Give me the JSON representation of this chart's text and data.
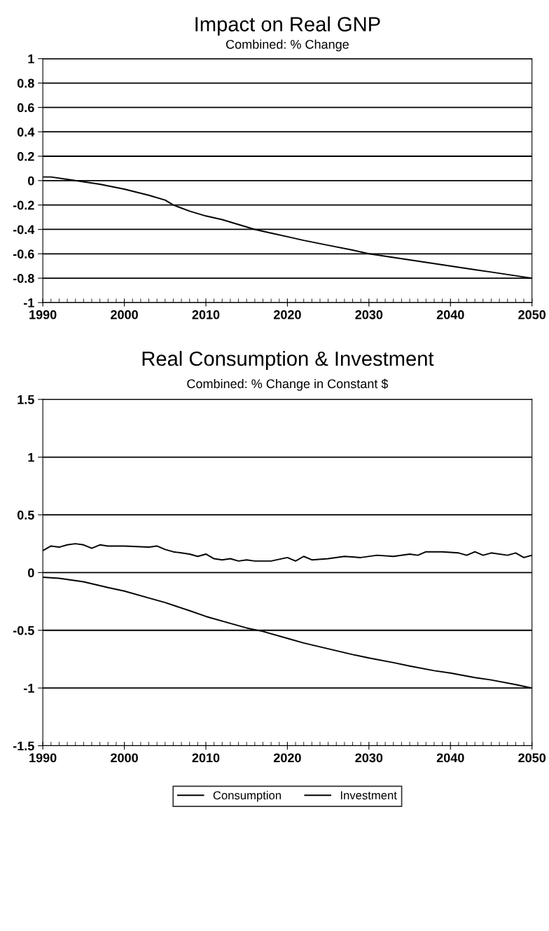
{
  "chart_data": [
    {
      "type": "line",
      "title": "Impact on Real GNP",
      "subtitle": "Combined: % Change",
      "xlim": [
        1990,
        2050
      ],
      "xticks": [
        1990,
        2000,
        2010,
        2020,
        2030,
        2040,
        2050
      ],
      "ylim": [
        -1,
        1
      ],
      "yticks": [
        -1,
        -0.8,
        -0.6,
        -0.4,
        -0.2,
        0,
        0.2,
        0.4,
        0.6,
        0.8,
        1
      ],
      "grid": "y",
      "legend": false,
      "series": [
        {
          "color": "#000000",
          "x": [
            1990,
            1991,
            1993,
            1995,
            1997,
            2000,
            2003,
            2005,
            2006,
            2008,
            2010,
            2012,
            2015,
            2016,
            2018,
            2020,
            2022,
            2025,
            2028,
            2030,
            2033,
            2035,
            2038,
            2040,
            2043,
            2045,
            2048,
            2050
          ],
          "values": [
            0.03,
            0.03,
            0.01,
            -0.01,
            -0.03,
            -0.07,
            -0.12,
            -0.16,
            -0.2,
            -0.25,
            -0.29,
            -0.32,
            -0.38,
            -0.4,
            -0.43,
            -0.46,
            -0.49,
            -0.53,
            -0.57,
            -0.6,
            -0.63,
            -0.65,
            -0.68,
            -0.7,
            -0.73,
            -0.75,
            -0.78,
            -0.8
          ]
        }
      ]
    },
    {
      "type": "line",
      "title": "Real Consumption & Investment",
      "subtitle": "Combined: % Change in Constant $",
      "xlim": [
        1990,
        2050
      ],
      "xticks": [
        1990,
        2000,
        2010,
        2020,
        2030,
        2040,
        2050
      ],
      "ylim": [
        -1.5,
        1.5
      ],
      "yticks": [
        -1.5,
        -1,
        -0.5,
        0,
        0.5,
        1,
        1.5
      ],
      "grid": "y",
      "legend": "bottom",
      "series": [
        {
          "name": "Consumption",
          "color": "#000000",
          "x": [
            1990,
            1992,
            1995,
            1998,
            2000,
            2003,
            2005,
            2008,
            2010,
            2013,
            2015,
            2017,
            2020,
            2022,
            2025,
            2028,
            2030,
            2033,
            2035,
            2038,
            2040,
            2043,
            2045,
            2048,
            2050
          ],
          "values": [
            -0.04,
            -0.05,
            -0.08,
            -0.13,
            -0.16,
            -0.22,
            -0.26,
            -0.33,
            -0.38,
            -0.44,
            -0.48,
            -0.51,
            -0.57,
            -0.61,
            -0.66,
            -0.71,
            -0.74,
            -0.78,
            -0.81,
            -0.85,
            -0.87,
            -0.91,
            -0.93,
            -0.97,
            -1.0
          ]
        },
        {
          "name": "Investment",
          "color": "#000000",
          "x": [
            1990,
            1991,
            1992,
            1993,
            1994,
            1995,
            1996,
            1997,
            1998,
            2000,
            2003,
            2004,
            2005,
            2006,
            2008,
            2009,
            2010,
            2011,
            2012,
            2013,
            2014,
            2015,
            2016,
            2018,
            2020,
            2021,
            2022,
            2023,
            2025,
            2027,
            2029,
            2031,
            2033,
            2035,
            2036,
            2037,
            2039,
            2041,
            2042,
            2043,
            2044,
            2045,
            2047,
            2048,
            2049,
            2050
          ],
          "values": [
            0.19,
            0.23,
            0.22,
            0.24,
            0.25,
            0.24,
            0.21,
            0.24,
            0.23,
            0.23,
            0.22,
            0.23,
            0.2,
            0.18,
            0.16,
            0.14,
            0.16,
            0.12,
            0.11,
            0.12,
            0.1,
            0.11,
            0.1,
            0.1,
            0.13,
            0.1,
            0.14,
            0.11,
            0.12,
            0.14,
            0.13,
            0.15,
            0.14,
            0.16,
            0.15,
            0.18,
            0.18,
            0.17,
            0.15,
            0.18,
            0.15,
            0.17,
            0.15,
            0.17,
            0.13,
            0.15
          ]
        }
      ]
    }
  ]
}
